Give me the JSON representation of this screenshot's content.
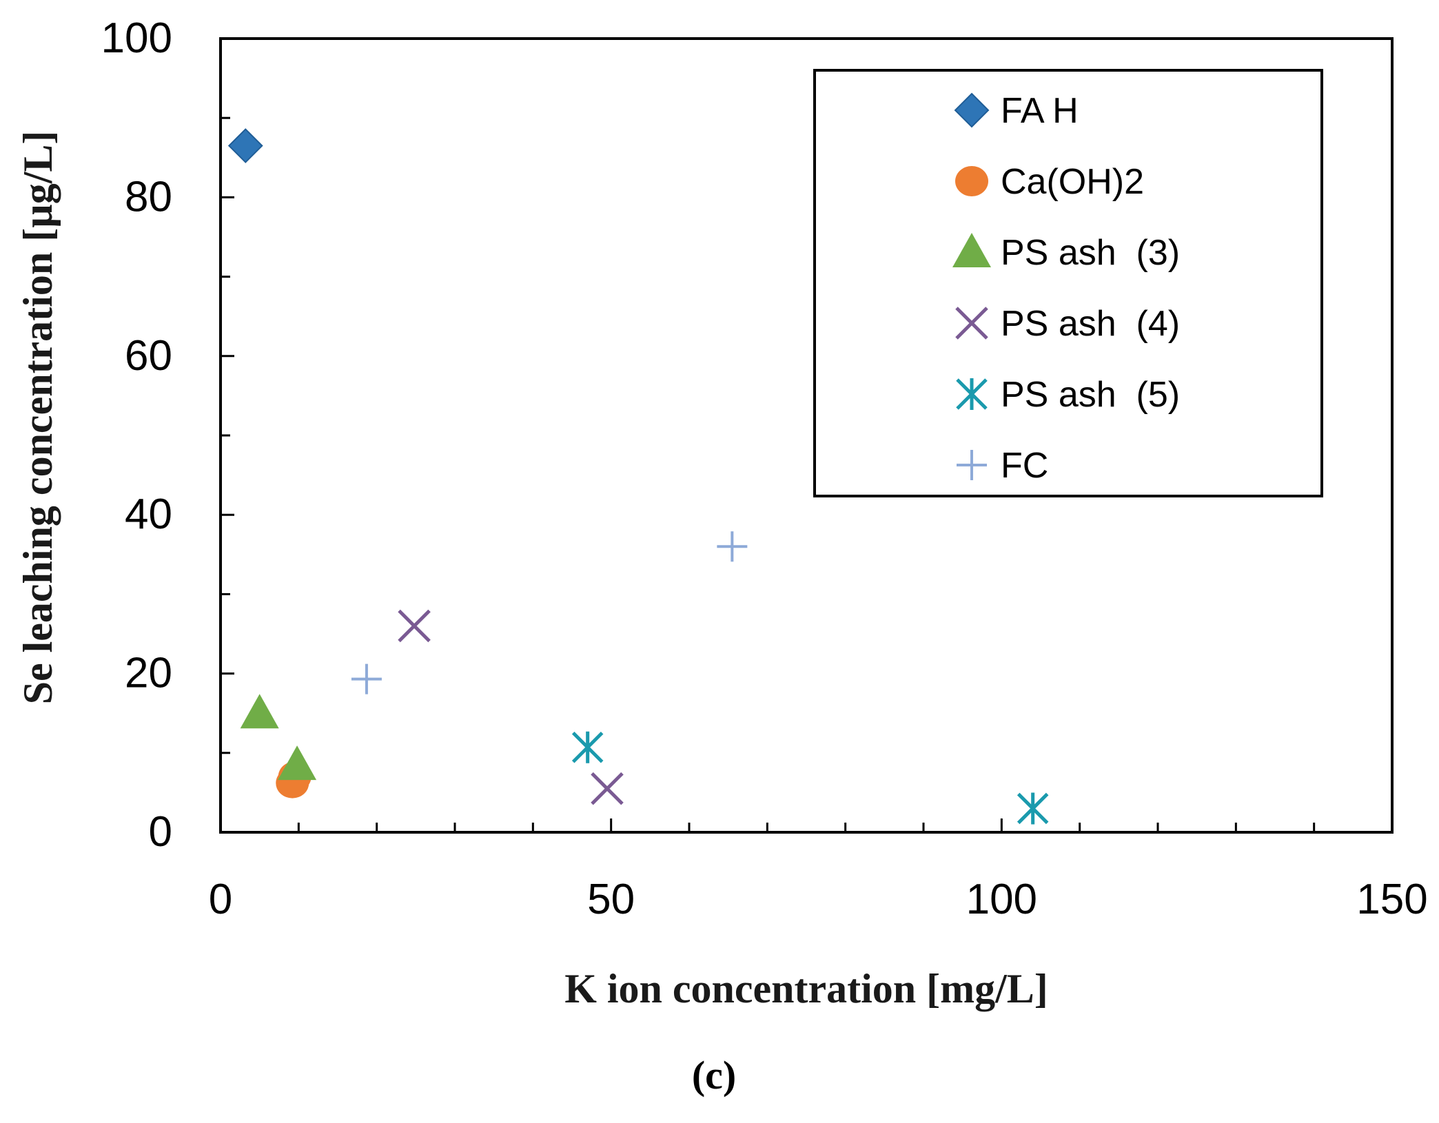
{
  "chart_data": {
    "type": "scatter",
    "panel_label": "(c)",
    "xlabel": "K ion concentration [mg/L]",
    "ylabel": "Se leaching concentration [µg/L]",
    "xlim": [
      0,
      150
    ],
    "ylim": [
      0,
      100
    ],
    "x_ticks": [
      0,
      50,
      100,
      150
    ],
    "y_ticks": [
      0,
      20,
      40,
      60,
      80,
      100
    ],
    "x_minor_step": 10,
    "y_minor_step": 10,
    "grid": false,
    "legend_position": "top-right",
    "series": [
      {
        "name": "FA H",
        "marker": "diamond",
        "color": "#2e75b6",
        "points": [
          {
            "x": 3.2,
            "y": 86.5
          }
        ]
      },
      {
        "name": "Ca(OH)2",
        "marker": "circle",
        "color": "#ed7d31",
        "points": [
          {
            "x": 9.2,
            "y": 6.2
          },
          {
            "x": 9.5,
            "y": 7.0
          }
        ]
      },
      {
        "name": "PS ash  (3)",
        "marker": "triangle",
        "color": "#70ad47",
        "points": [
          {
            "x": 5.0,
            "y": 15.0
          },
          {
            "x": 9.8,
            "y": 8.5
          }
        ]
      },
      {
        "name": "PS ash  (4)",
        "marker": "x",
        "color": "#7a5a93",
        "points": [
          {
            "x": 24.8,
            "y": 26.0
          },
          {
            "x": 49.5,
            "y": 5.5
          }
        ]
      },
      {
        "name": "PS ash  (5)",
        "marker": "star",
        "color": "#1a9aad",
        "points": [
          {
            "x": 47.0,
            "y": 10.7
          },
          {
            "x": 104.0,
            "y": 3.0
          }
        ]
      },
      {
        "name": "FC",
        "marker": "plus",
        "color": "#8eaad8",
        "points": [
          {
            "x": 18.7,
            "y": 19.3
          },
          {
            "x": 65.5,
            "y": 36.0
          }
        ]
      }
    ]
  }
}
